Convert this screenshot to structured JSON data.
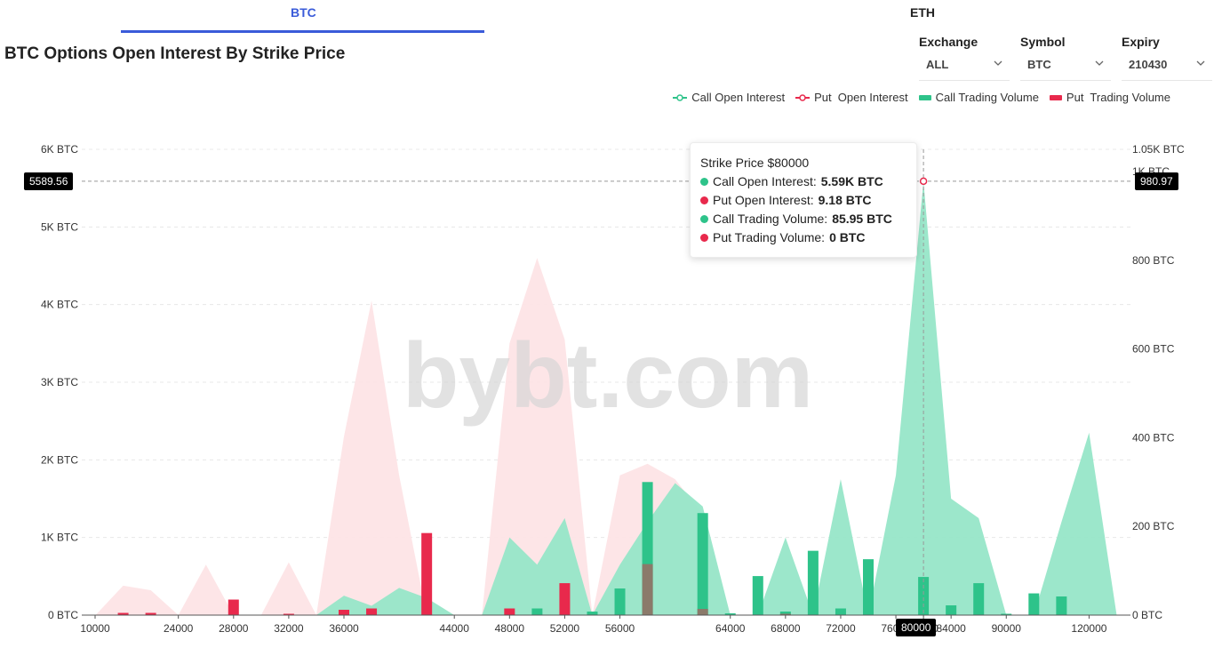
{
  "tabs": [
    {
      "label": "BTC",
      "active": true
    },
    {
      "label": "ETH",
      "active": false
    }
  ],
  "title": "BTC Options Open Interest By Strike Price",
  "filters": {
    "exchange": {
      "label": "Exchange",
      "value": "ALL"
    },
    "symbol": {
      "label": "Symbol",
      "value": "BTC"
    },
    "expiry": {
      "label": "Expiry",
      "value": "210430"
    }
  },
  "legend": {
    "call_oi": "Call Open Interest",
    "put_oi": "Put  Open Interest",
    "call_vol": "Call Trading Volume",
    "put_vol": "Put  Trading Volume"
  },
  "colors": {
    "call_area": "#97e6c8",
    "put_area": "#fde4e6",
    "call_bar": "#2ec38a",
    "put_bar": "#e8294c",
    "overlap_bar": "#8b7a6a",
    "accent": "#3a5bd9"
  },
  "watermark": "bybt.com",
  "tooltip": {
    "title": "Strike Price $80000",
    "rows": [
      {
        "label": "Call Open Interest:",
        "value": "5.59K BTC",
        "color": "#2ec38a"
      },
      {
        "label": "Put Open Interest:",
        "value": "9.18 BTC",
        "color": "#e8294c"
      },
      {
        "label": "Call Trading Volume:",
        "value": "85.95 BTC",
        "color": "#2ec38a"
      },
      {
        "label": "Put Trading Volume:",
        "value": "0 BTC",
        "color": "#e8294c"
      }
    ]
  },
  "crosshair": {
    "left_value": "5589.56",
    "right_value": "980.97",
    "x_value": "80000"
  },
  "chart_data": {
    "type": "bar",
    "x_tick_labels": [
      "10000",
      "24000",
      "28000",
      "32000",
      "36000",
      "44000",
      "48000",
      "52000",
      "56000",
      "64000",
      "68000",
      "72000",
      "76000",
      "80000",
      "84000",
      "90000",
      "120000"
    ],
    "left_axis": {
      "labels": [
        "0 BTC",
        "1K BTC",
        "2K BTC",
        "3K BTC",
        "4K BTC",
        "5K BTC",
        "6K BTC"
      ],
      "ylim": [
        0,
        6000
      ]
    },
    "right_axis": {
      "labels": [
        "0 BTC",
        "200 BTC",
        "400 BTC",
        "600 BTC",
        "800 BTC",
        "1K BTC",
        "1.05K BTC"
      ],
      "ylim": [
        0,
        1050
      ]
    },
    "categories": [
      "10000",
      "20000",
      "22000",
      "24000",
      "26000",
      "28000",
      "30000",
      "32000",
      "34000",
      "36000",
      "38000",
      "40000",
      "42000",
      "44000",
      "46000",
      "48000",
      "50000",
      "52000",
      "54000",
      "56000",
      "58000",
      "60000",
      "62000",
      "64000",
      "66000",
      "68000",
      "70000",
      "72000",
      "74000",
      "76000",
      "80000",
      "84000",
      "88000",
      "90000",
      "100000",
      "110000",
      "120000",
      "130000"
    ],
    "series": [
      {
        "name": "Call Open Interest",
        "axis": "left",
        "values": [
          0,
          0,
          0,
          0,
          0,
          0,
          0,
          0,
          0,
          250,
          120,
          350,
          220,
          0,
          0,
          1000,
          650,
          1250,
          0,
          650,
          1200,
          1700,
          1400,
          0,
          0,
          1000,
          0,
          1750,
          0,
          1800,
          5589.56,
          1500,
          1250,
          0,
          0,
          1200,
          2350,
          0
        ]
      },
      {
        "name": "Put Open Interest",
        "axis": "left",
        "values": [
          0,
          380,
          320,
          0,
          650,
          0,
          0,
          680,
          0,
          2300,
          4050,
          1800,
          0,
          0,
          0,
          3500,
          4600,
          3550,
          0,
          1800,
          1950,
          1750,
          1300,
          0,
          0,
          0,
          0,
          0,
          0,
          0,
          9.18,
          0,
          0,
          0,
          0,
          0,
          0,
          0
        ]
      },
      {
        "name": "Call Trading Volume",
        "axis": "right",
        "values": [
          0,
          0,
          0,
          0,
          0,
          0,
          0,
          0,
          0,
          0,
          0,
          0,
          0,
          0,
          0,
          0,
          15,
          0,
          8,
          60,
          300,
          0,
          230,
          4,
          88,
          8,
          145,
          15,
          126,
          0,
          86,
          22,
          72,
          3,
          49,
          42,
          0,
          0
        ]
      },
      {
        "name": "Put Trading Volume",
        "axis": "right",
        "values": [
          0,
          5,
          5,
          0,
          0,
          35,
          0,
          3,
          0,
          12,
          15,
          0,
          185,
          0,
          0,
          15,
          0,
          72,
          0,
          0,
          115,
          0,
          14,
          0,
          0,
          3,
          0,
          0,
          0,
          0,
          0,
          0,
          0,
          0,
          0,
          0,
          0,
          0
        ]
      }
    ]
  }
}
